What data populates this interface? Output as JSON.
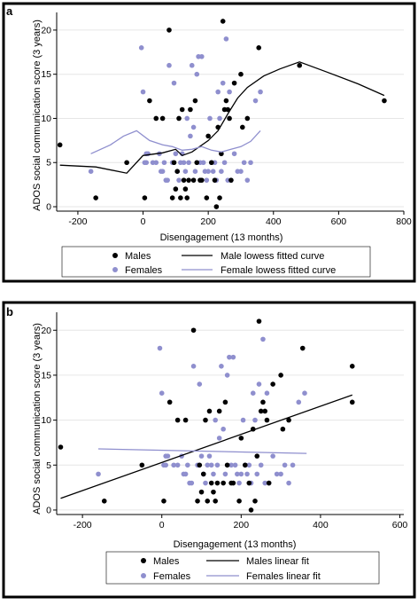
{
  "colors": {
    "males": "#000000",
    "females": "#8f8fce",
    "frame": "#000000",
    "grid": "#e6e6e6"
  },
  "chart_data": [
    {
      "panel": "a",
      "type": "scatter",
      "xlabel": "Disengagement (13 months)",
      "ylabel": "ADOS social communication score (3 years)",
      "xlim": [
        -265,
        800
      ],
      "ylim": [
        -0.5,
        22
      ],
      "x_ticks": [
        -200,
        0,
        200,
        400,
        600,
        800
      ],
      "y_ticks": [
        0,
        5,
        10,
        15,
        20
      ],
      "grid": true,
      "legend_position": "bottom",
      "series": [
        {
          "name": "Males",
          "kind": "points",
          "color_key": "males",
          "points": [
            [
              -255,
              7
            ],
            [
              -145,
              1
            ],
            [
              -50,
              5
            ],
            [
              5,
              1
            ],
            [
              20,
              12
            ],
            [
              40,
              10
            ],
            [
              60,
              10
            ],
            [
              80,
              20
            ],
            [
              90,
              1
            ],
            [
              95,
              5
            ],
            [
              100,
              2
            ],
            [
              105,
              4
            ],
            [
              110,
              10
            ],
            [
              115,
              1
            ],
            [
              120,
              11
            ],
            [
              125,
              3
            ],
            [
              130,
              2
            ],
            [
              135,
              1
            ],
            [
              140,
              3
            ],
            [
              145,
              11
            ],
            [
              155,
              3
            ],
            [
              160,
              12
            ],
            [
              165,
              5
            ],
            [
              175,
              3
            ],
            [
              180,
              3
            ],
            [
              195,
              1
            ],
            [
              200,
              8
            ],
            [
              210,
              5
            ],
            [
              220,
              3
            ],
            [
              225,
              0
            ],
            [
              230,
              9
            ],
            [
              235,
              1
            ],
            [
              240,
              6
            ],
            [
              245,
              21
            ],
            [
              250,
              11
            ],
            [
              255,
              12
            ],
            [
              260,
              11
            ],
            [
              265,
              10
            ],
            [
              270,
              3
            ],
            [
              280,
              14
            ],
            [
              300,
              15
            ],
            [
              305,
              9
            ],
            [
              320,
              10
            ],
            [
              355,
              18
            ],
            [
              480,
              16
            ],
            [
              740,
              12
            ]
          ]
        },
        {
          "name": "Females",
          "kind": "points",
          "color_key": "females",
          "points": [
            [
              -160,
              4
            ],
            [
              -5,
              18
            ],
            [
              0,
              13
            ],
            [
              5,
              5
            ],
            [
              10,
              6
            ],
            [
              10,
              5
            ],
            [
              15,
              6
            ],
            [
              30,
              5
            ],
            [
              40,
              5
            ],
            [
              50,
              6
            ],
            [
              55,
              4
            ],
            [
              60,
              4
            ],
            [
              65,
              5
            ],
            [
              70,
              3
            ],
            [
              75,
              3
            ],
            [
              80,
              16
            ],
            [
              90,
              5
            ],
            [
              95,
              14
            ],
            [
              100,
              6
            ],
            [
              105,
              4
            ],
            [
              110,
              3
            ],
            [
              115,
              5
            ],
            [
              120,
              6
            ],
            [
              125,
              5
            ],
            [
              130,
              4
            ],
            [
              135,
              10
            ],
            [
              140,
              5
            ],
            [
              145,
              8
            ],
            [
              150,
              16
            ],
            [
              155,
              9
            ],
            [
              160,
              4
            ],
            [
              165,
              15
            ],
            [
              170,
              17
            ],
            [
              175,
              5
            ],
            [
              180,
              17
            ],
            [
              185,
              5
            ],
            [
              190,
              4
            ],
            [
              195,
              3
            ],
            [
              200,
              4
            ],
            [
              205,
              10
            ],
            [
              210,
              5
            ],
            [
              215,
              4
            ],
            [
              220,
              5
            ],
            [
              225,
              3
            ],
            [
              230,
              13
            ],
            [
              235,
              10
            ],
            [
              240,
              4
            ],
            [
              245,
              14
            ],
            [
              250,
              5
            ],
            [
              255,
              19
            ],
            [
              260,
              3
            ],
            [
              265,
              13
            ],
            [
              270,
              3
            ],
            [
              280,
              6
            ],
            [
              290,
              4
            ],
            [
              300,
              4
            ],
            [
              310,
              5
            ],
            [
              320,
              3
            ],
            [
              330,
              5
            ],
            [
              345,
              12
            ],
            [
              360,
              13
            ]
          ]
        },
        {
          "name": "Male lowess fitted curve",
          "kind": "line",
          "color_key": "males",
          "points": [
            [
              -255,
              4.7
            ],
            [
              -145,
              4.5
            ],
            [
              -50,
              3.8
            ],
            [
              0,
              5.8
            ],
            [
              60,
              6.1
            ],
            [
              100,
              6.5
            ],
            [
              120,
              5.8
            ],
            [
              150,
              6.2
            ],
            [
              200,
              7.5
            ],
            [
              230,
              8.6
            ],
            [
              260,
              10.5
            ],
            [
              290,
              12.3
            ],
            [
              320,
              13.5
            ],
            [
              370,
              14.8
            ],
            [
              420,
              15.6
            ],
            [
              480,
              16.4
            ],
            [
              560,
              15.3
            ],
            [
              660,
              13.9
            ],
            [
              740,
              12.6
            ]
          ]
        },
        {
          "name": "Female lowess fitted curve",
          "kind": "line",
          "color_key": "females",
          "points": [
            [
              -160,
              6.0
            ],
            [
              -100,
              7.0
            ],
            [
              -60,
              8.0
            ],
            [
              -20,
              8.6
            ],
            [
              20,
              7.5
            ],
            [
              60,
              7.0
            ],
            [
              90,
              6.8
            ],
            [
              120,
              6.4
            ],
            [
              150,
              6.5
            ],
            [
              180,
              6.8
            ],
            [
              210,
              6.4
            ],
            [
              240,
              6.2
            ],
            [
              270,
              6.5
            ],
            [
              300,
              6.8
            ],
            [
              330,
              7.4
            ],
            [
              360,
              8.6
            ]
          ]
        }
      ]
    },
    {
      "panel": "b",
      "type": "scatter",
      "xlabel": "Disengagement (13 months)",
      "ylabel": "ADOS social communication score (3 years)",
      "xlim": [
        -265,
        610
      ],
      "ylim": [
        -0.5,
        22
      ],
      "x_ticks": [
        -200,
        0,
        200,
        400,
        600
      ],
      "y_ticks": [
        0,
        5,
        10,
        15,
        20
      ],
      "grid": true,
      "legend_position": "bottom",
      "series": [
        {
          "name": "Males",
          "kind": "points",
          "color_key": "males",
          "points": [
            [
              -255,
              7
            ],
            [
              -145,
              1
            ],
            [
              -50,
              5
            ],
            [
              5,
              1
            ],
            [
              20,
              12
            ],
            [
              40,
              10
            ],
            [
              60,
              10
            ],
            [
              80,
              20
            ],
            [
              90,
              1
            ],
            [
              95,
              5
            ],
            [
              100,
              2
            ],
            [
              105,
              4
            ],
            [
              110,
              10
            ],
            [
              115,
              1
            ],
            [
              120,
              11
            ],
            [
              125,
              3
            ],
            [
              130,
              2
            ],
            [
              135,
              1
            ],
            [
              140,
              3
            ],
            [
              145,
              11
            ],
            [
              155,
              3
            ],
            [
              160,
              12
            ],
            [
              165,
              5
            ],
            [
              175,
              3
            ],
            [
              180,
              3
            ],
            [
              195,
              1
            ],
            [
              200,
              8
            ],
            [
              210,
              5
            ],
            [
              220,
              3
            ],
            [
              225,
              0
            ],
            [
              230,
              9
            ],
            [
              235,
              1
            ],
            [
              240,
              6
            ],
            [
              245,
              21
            ],
            [
              250,
              11
            ],
            [
              255,
              12
            ],
            [
              260,
              11
            ],
            [
              265,
              10
            ],
            [
              270,
              3
            ],
            [
              280,
              14
            ],
            [
              300,
              15
            ],
            [
              305,
              9
            ],
            [
              320,
              10
            ],
            [
              355,
              18
            ],
            [
              480,
              16
            ],
            [
              480,
              12
            ]
          ]
        },
        {
          "name": "Females",
          "kind": "points",
          "color_key": "females",
          "points": [
            [
              -160,
              4
            ],
            [
              -5,
              18
            ],
            [
              0,
              13
            ],
            [
              5,
              5
            ],
            [
              10,
              6
            ],
            [
              10,
              5
            ],
            [
              15,
              6
            ],
            [
              30,
              5
            ],
            [
              40,
              5
            ],
            [
              50,
              6
            ],
            [
              55,
              4
            ],
            [
              60,
              4
            ],
            [
              65,
              5
            ],
            [
              70,
              3
            ],
            [
              75,
              3
            ],
            [
              80,
              16
            ],
            [
              90,
              5
            ],
            [
              95,
              14
            ],
            [
              100,
              6
            ],
            [
              105,
              4
            ],
            [
              110,
              3
            ],
            [
              115,
              5
            ],
            [
              120,
              6
            ],
            [
              125,
              5
            ],
            [
              130,
              4
            ],
            [
              135,
              10
            ],
            [
              140,
              5
            ],
            [
              145,
              8
            ],
            [
              150,
              16
            ],
            [
              155,
              9
            ],
            [
              160,
              4
            ],
            [
              165,
              15
            ],
            [
              170,
              17
            ],
            [
              175,
              5
            ],
            [
              180,
              17
            ],
            [
              185,
              5
            ],
            [
              190,
              4
            ],
            [
              195,
              3
            ],
            [
              200,
              4
            ],
            [
              205,
              10
            ],
            [
              210,
              5
            ],
            [
              215,
              4
            ],
            [
              220,
              5
            ],
            [
              225,
              3
            ],
            [
              230,
              13
            ],
            [
              235,
              10
            ],
            [
              240,
              4
            ],
            [
              245,
              14
            ],
            [
              250,
              5
            ],
            [
              255,
              19
            ],
            [
              260,
              3
            ],
            [
              265,
              13
            ],
            [
              270,
              3
            ],
            [
              280,
              6
            ],
            [
              290,
              4
            ],
            [
              300,
              4
            ],
            [
              310,
              5
            ],
            [
              320,
              3
            ],
            [
              330,
              5
            ],
            [
              345,
              12
            ],
            [
              360,
              13
            ]
          ]
        },
        {
          "name": "Males linear fit",
          "kind": "line",
          "color_key": "males",
          "points": [
            [
              -255,
              1.3
            ],
            [
              480,
              12.8
            ]
          ]
        },
        {
          "name": "Females linear fit",
          "kind": "line",
          "color_key": "females",
          "points": [
            [
              -160,
              6.8
            ],
            [
              365,
              6.3
            ]
          ]
        }
      ]
    }
  ]
}
